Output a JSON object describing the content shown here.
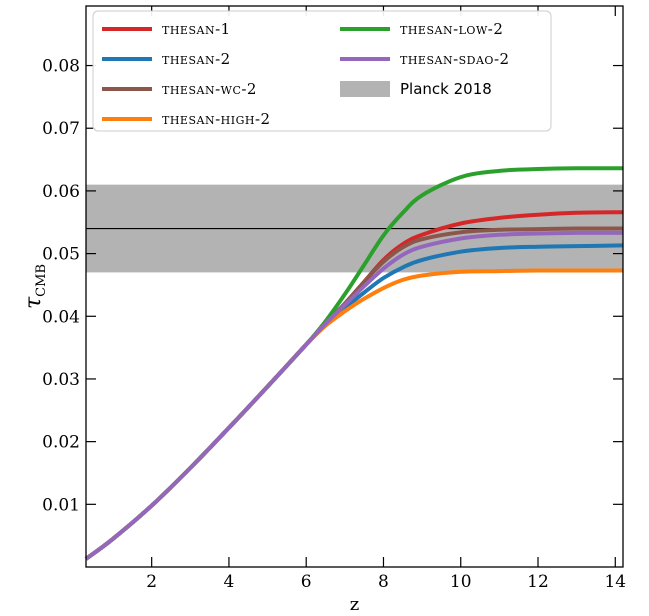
{
  "chart_data": {
    "type": "line",
    "xlabel": "z",
    "ylabel": "τ",
    "ylabel_sub": "CMB",
    "xlim": [
      0.3,
      14.2
    ],
    "ylim": [
      0.0,
      0.0895
    ],
    "xticks": [
      2,
      4,
      6,
      8,
      10,
      12,
      14
    ],
    "yticks": [
      0.01,
      0.02,
      0.03,
      0.04,
      0.05,
      0.06,
      0.07,
      0.08
    ],
    "ytick_labels": [
      "0.01",
      "0.02",
      "0.03",
      "0.04",
      "0.05",
      "0.06",
      "0.07",
      "0.08"
    ],
    "planck_band": {
      "name": "Planck 2018",
      "low": 0.047,
      "high": 0.061,
      "central": 0.054,
      "color": "#b3b3b3"
    },
    "legend_location": "upper-left",
    "series": [
      {
        "name": "THESAN-1",
        "color": "#d62728",
        "final_value": 0.0566,
        "x": [
          0.3,
          1,
          2,
          3,
          4,
          5,
          6,
          6.5,
          7,
          7.5,
          8,
          8.5,
          9,
          10,
          11,
          12,
          13,
          14.2
        ],
        "y": [
          0.0013,
          0.0045,
          0.0098,
          0.0158,
          0.0222,
          0.0288,
          0.0355,
          0.0388,
          0.042,
          0.0455,
          0.049,
          0.0515,
          0.053,
          0.0548,
          0.0557,
          0.0562,
          0.0565,
          0.0566
        ]
      },
      {
        "name": "THESAN-2",
        "color": "#1f77b4",
        "final_value": 0.0513,
        "x": [
          0.3,
          1,
          2,
          3,
          4,
          5,
          6,
          6.5,
          7,
          7.5,
          8,
          8.5,
          9,
          10,
          11,
          12,
          13,
          14.2
        ],
        "y": [
          0.0013,
          0.0045,
          0.0098,
          0.0158,
          0.0222,
          0.0288,
          0.0355,
          0.0386,
          0.0413,
          0.0438,
          0.0461,
          0.0478,
          0.049,
          0.0503,
          0.0509,
          0.0511,
          0.0512,
          0.0513
        ]
      },
      {
        "name": "THESAN-WC-2",
        "color": "#8c564b",
        "final_value": 0.054,
        "x": [
          0.3,
          1,
          2,
          3,
          4,
          5,
          6,
          6.5,
          7,
          7.5,
          8,
          8.5,
          9,
          10,
          11,
          12,
          13,
          14.2
        ],
        "y": [
          0.0013,
          0.0045,
          0.0098,
          0.0158,
          0.0222,
          0.0288,
          0.0355,
          0.0388,
          0.042,
          0.0455,
          0.0487,
          0.051,
          0.0523,
          0.0534,
          0.0538,
          0.0539,
          0.054,
          0.054
        ]
      },
      {
        "name": "THESAN-HIGH-2",
        "color": "#ff7f0e",
        "final_value": 0.0473,
        "x": [
          0.3,
          1,
          2,
          3,
          4,
          5,
          6,
          6.5,
          7,
          7.5,
          8,
          8.5,
          9,
          10,
          11,
          12,
          13,
          14.2
        ],
        "y": [
          0.0013,
          0.0045,
          0.0098,
          0.0158,
          0.0222,
          0.0288,
          0.0355,
          0.0385,
          0.0408,
          0.0428,
          0.0445,
          0.0458,
          0.0465,
          0.0471,
          0.0472,
          0.0473,
          0.0473,
          0.0473
        ]
      },
      {
        "name": "THESAN-LOW-2",
        "color": "#2ca02c",
        "final_value": 0.0636,
        "x": [
          0.3,
          1,
          2,
          3,
          4,
          5,
          6,
          6.5,
          7,
          7.5,
          8,
          8.5,
          9,
          10,
          11,
          12,
          13,
          14.2
        ],
        "y": [
          0.0013,
          0.0045,
          0.0098,
          0.0158,
          0.0222,
          0.0288,
          0.0355,
          0.0392,
          0.0435,
          0.0482,
          0.0529,
          0.0565,
          0.0593,
          0.0622,
          0.0632,
          0.0635,
          0.0636,
          0.0636
        ]
      },
      {
        "name": "THESAN-SDAO-2",
        "color": "#9467bd",
        "final_value": 0.0533,
        "x": [
          0.3,
          1,
          2,
          3,
          4,
          5,
          6,
          6.5,
          7,
          7.5,
          8,
          8.5,
          9,
          10,
          11,
          12,
          13,
          14.2
        ],
        "y": [
          0.0013,
          0.0045,
          0.0098,
          0.0158,
          0.0222,
          0.0288,
          0.0355,
          0.0388,
          0.0418,
          0.0448,
          0.0476,
          0.0498,
          0.0511,
          0.0524,
          0.053,
          0.0532,
          0.0533,
          0.0533
        ]
      }
    ]
  }
}
